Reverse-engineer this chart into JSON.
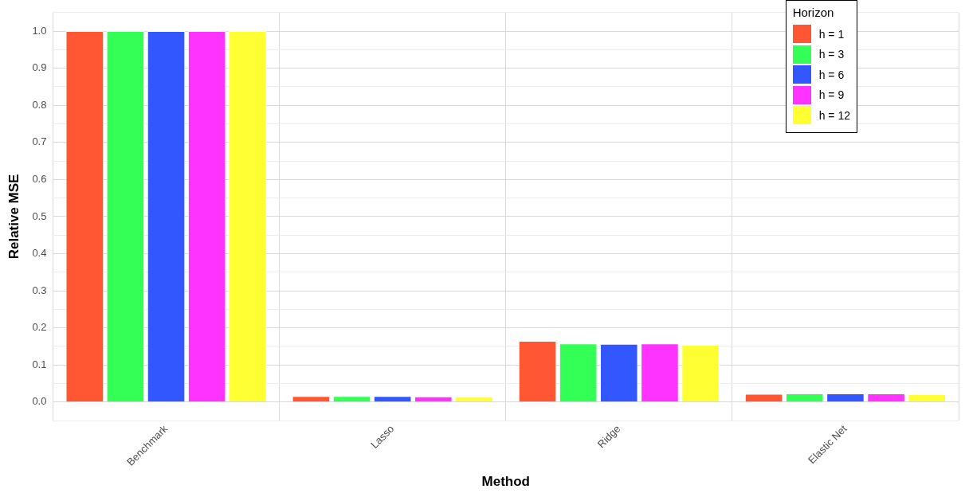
{
  "chart_data": {
    "type": "bar",
    "xlabel": "Method",
    "ylabel": "Relative MSE",
    "legend_title": "Horizon",
    "legend": "top right",
    "grid": true,
    "categories": [
      "Benchmark",
      "Lasso",
      "Ridge",
      "Elastic Net"
    ],
    "series": [
      {
        "name": "h = 1",
        "color": "#ff5733",
        "values": [
          1.0,
          0.016,
          0.165,
          0.022
        ]
      },
      {
        "name": "h = 3",
        "color": "#33ff57",
        "values": [
          1.0,
          0.016,
          0.158,
          0.023
        ]
      },
      {
        "name": "h = 6",
        "color": "#3357ff",
        "values": [
          1.0,
          0.016,
          0.157,
          0.023
        ]
      },
      {
        "name": "h = 9",
        "color": "#ff33ff",
        "values": [
          1.0,
          0.015,
          0.158,
          0.023
        ]
      },
      {
        "name": "h = 12",
        "color": "#ffff33",
        "values": [
          1.0,
          0.015,
          0.154,
          0.021
        ]
      }
    ],
    "ylim": [
      -0.05,
      1.05
    ],
    "yticks": [
      {
        "value": -0.05,
        "label": null
      },
      "0.0",
      {
        "value": 0.05,
        "label": null
      },
      0.1,
      {
        "value": 0.15,
        "label": null
      },
      0.2,
      {
        "value": 0.25,
        "label": null
      },
      0.3,
      {
        "value": 0.35,
        "label": null
      },
      0.4,
      {
        "value": 0.45,
        "label": null
      },
      0.5,
      {
        "value": 0.55,
        "label": null
      },
      0.6,
      {
        "value": 0.65,
        "label": null
      },
      0.7,
      {
        "value": 0.75,
        "label": null
      },
      0.8,
      {
        "value": 0.85,
        "label": null
      },
      0.9,
      {
        "value": 0.95,
        "label": null
      },
      "1.0",
      {
        "value": 1.05,
        "label": null
      }
    ]
  }
}
